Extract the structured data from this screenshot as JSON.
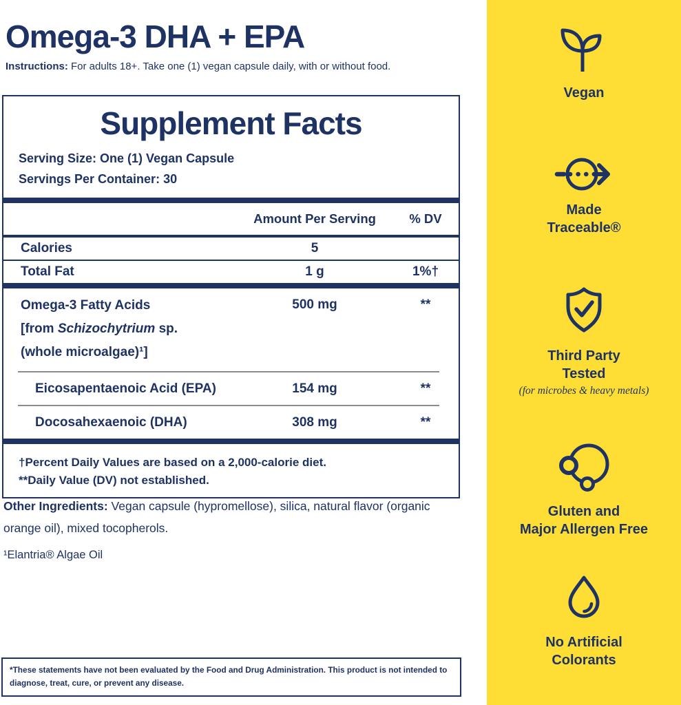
{
  "colors": {
    "navy": "#1E3264",
    "yellow": "#FEDE35",
    "gray_line": "#8C8C8C"
  },
  "header": {
    "title": "Omega-3 DHA + EPA",
    "instructions_label": "Instructions:",
    "instructions_text": " For adults 18+. Take one (1) vegan capsule daily, with or without food."
  },
  "supplement_facts": {
    "title": "Supplement Facts",
    "serving_size_label": "Serving Size:",
    "serving_size_value": " One (1) Vegan Capsule",
    "servings_label": "Servings Per Container:",
    "servings_value": " 30",
    "columns": {
      "amount": "Amount Per Serving",
      "dv": "% DV"
    },
    "rows": [
      {
        "group": "main",
        "name": "Calories",
        "amount": "5",
        "dv": ""
      },
      {
        "group": "main",
        "name": "Total Fat",
        "amount": "1 g",
        "dv": "1%†"
      },
      {
        "group": "omega",
        "lines": [
          [
            {
              "text": "Omega-3 Fatty Acids"
            }
          ],
          [
            {
              "text": "[from "
            },
            {
              "text": "Schizochytrium",
              "italic": true
            },
            {
              "text": " sp."
            }
          ],
          [
            {
              "text": "(whole microalgae)¹]"
            }
          ]
        ],
        "amount": "500 mg",
        "dv": "**"
      },
      {
        "group": "omega",
        "indent": true,
        "name": "Eicosapentaenoic Acid (EPA)",
        "amount": "154 mg",
        "dv": "**"
      },
      {
        "group": "omega",
        "indent": true,
        "name": "Docosahexaenoic (DHA)",
        "amount": "308 mg",
        "dv": "**"
      }
    ],
    "footnotes": [
      "†Percent Daily Values are based on a 2,000-calorie diet.",
      "**Daily Value (DV) not established."
    ]
  },
  "other_ingredients": {
    "label": "Other Ingredients:",
    "text": " Vegan capsule (hypromellose), silica, natural flavor (organic orange oil), mixed tocopherols."
  },
  "source_note": "¹Elantria® Algae Oil",
  "disclaimer": "*These statements have not been evaluated by the Food and Drug Administration. This product is not intended to diagnose, treat, cure, or prevent any disease.",
  "sidebar": {
    "badges": [
      {
        "icon": "sprout-icon",
        "label_lines": [
          "Vegan"
        ]
      },
      {
        "icon": "traceable-arrow-icon",
        "label_lines": [
          "Made",
          "Traceable®"
        ]
      },
      {
        "icon": "shield-check-icon",
        "label_lines": [
          "Third Party",
          "Tested"
        ],
        "sublabel": "(for microbes & heavy metals)"
      },
      {
        "icon": "molecule-circles-icon",
        "label_lines": [
          "Gluten and",
          "Major Allergen Free"
        ]
      },
      {
        "icon": "droplet-icon",
        "label_lines": [
          "No Artificial",
          "Colorants"
        ]
      }
    ]
  }
}
